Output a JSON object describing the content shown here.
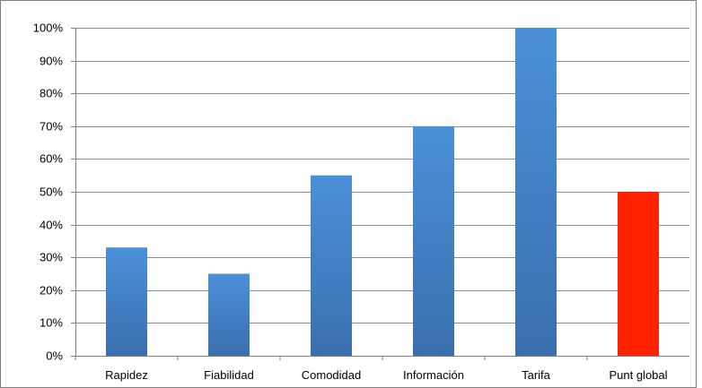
{
  "chart_data": {
    "type": "bar",
    "categories": [
      "Rapidez",
      "Fiabilidad",
      "Comodidad",
      "Información",
      "Tarifa",
      "Punt global"
    ],
    "values": [
      33,
      25,
      55,
      70,
      100,
      50
    ],
    "unit": "%",
    "ylim": [
      0,
      100
    ],
    "yticks": [
      "0%",
      "10%",
      "20%",
      "30%",
      "40%",
      "50%",
      "60%",
      "70%",
      "80%",
      "90%",
      "100%"
    ],
    "grid": true,
    "legend": "none",
    "title": "",
    "xlabel": "",
    "ylabel": "",
    "colors": {
      "bar_top": "#4A90D9",
      "bar_bottom": "#3A6FAD",
      "highlight": "#FF2200",
      "grid": "#8C8C8C",
      "axis": "#7F7F7F",
      "border": "#7F7F7F"
    },
    "highlight_category": "Punt global"
  }
}
